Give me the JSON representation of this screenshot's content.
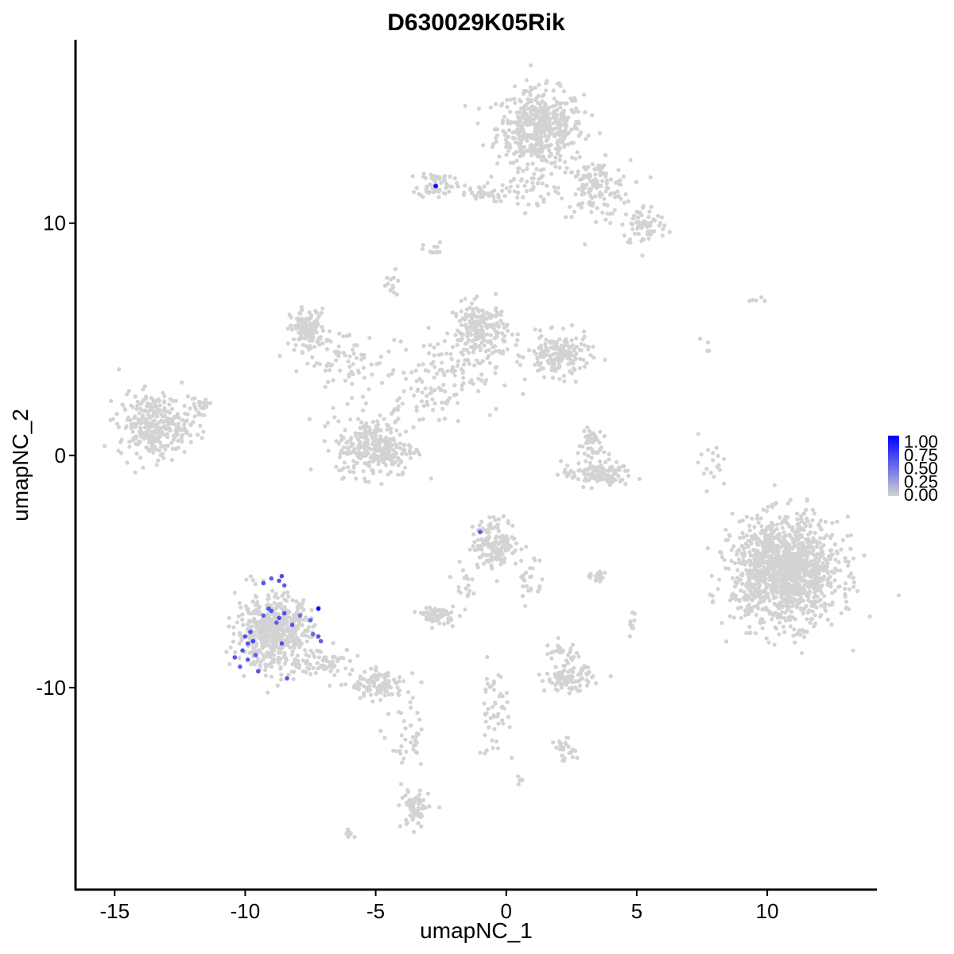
{
  "chart_data": {
    "type": "scatter",
    "title": "D630029K05Rik",
    "xlabel": "umapNC_1",
    "ylabel": "umapNC_2",
    "xlim": [
      -16.5,
      14.2
    ],
    "ylim": [
      -18.7,
      17.9
    ],
    "x_ticks": [
      -15,
      -10,
      -5,
      0,
      5,
      10
    ],
    "x_tick_labels": [
      "-15",
      "-10",
      "-5",
      "0",
      "5",
      "10"
    ],
    "y_ticks": [
      -10,
      0,
      10
    ],
    "y_tick_labels": [
      "-10",
      "0",
      "10"
    ],
    "grid": false,
    "legend": {
      "position": "right",
      "type": "colorbar",
      "labels": [
        "1.00",
        "0.75",
        "0.50",
        "0.25",
        "0.00"
      ],
      "low_color": "#d3d3d3",
      "high_color": "#0000ff",
      "range": [
        0,
        1
      ]
    },
    "background_color": "#d3d3d3",
    "clusters": [
      {
        "cx": 1.3,
        "cy": 14.1,
        "sx": 1.1,
        "sy": 1.1,
        "n": 480
      },
      {
        "cx": 3.4,
        "cy": 11.5,
        "sx": 0.9,
        "sy": 0.8,
        "n": 140
      },
      {
        "cx": 5.3,
        "cy": 9.9,
        "sx": 0.6,
        "sy": 0.6,
        "n": 70
      },
      {
        "cx": -2.7,
        "cy": 11.7,
        "sx": 0.45,
        "sy": 0.4,
        "n": 60
      },
      {
        "cx": -1.1,
        "cy": 11.3,
        "sx": 0.8,
        "sy": 0.25,
        "n": 40
      },
      {
        "cx": 0.9,
        "cy": 11.6,
        "sx": 0.5,
        "sy": 0.7,
        "n": 40
      },
      {
        "cx": -2.8,
        "cy": 8.8,
        "sx": 0.25,
        "sy": 0.25,
        "n": 12
      },
      {
        "cx": -4.4,
        "cy": 7.3,
        "sx": 0.25,
        "sy": 0.45,
        "n": 15
      },
      {
        "cx": -7.6,
        "cy": 5.4,
        "sx": 0.45,
        "sy": 0.6,
        "n": 120
      },
      {
        "cx": -6.2,
        "cy": 4.0,
        "sx": 1.1,
        "sy": 1.0,
        "n": 70
      },
      {
        "cx": -1.0,
        "cy": 5.4,
        "sx": 0.7,
        "sy": 0.8,
        "n": 200
      },
      {
        "cx": 2.0,
        "cy": 4.3,
        "sx": 0.8,
        "sy": 0.6,
        "n": 170
      },
      {
        "cx": -2.5,
        "cy": 3.5,
        "sx": 1.5,
        "sy": 1.1,
        "n": 120
      },
      {
        "cx": -4.0,
        "cy": 1.7,
        "sx": 1.1,
        "sy": 0.7,
        "n": 35
      },
      {
        "cx": -5.0,
        "cy": 0.3,
        "sx": 1.0,
        "sy": 0.8,
        "n": 280
      },
      {
        "cx": -13.5,
        "cy": 1.3,
        "sx": 0.9,
        "sy": 0.9,
        "n": 300
      },
      {
        "cx": -11.8,
        "cy": 2.1,
        "sx": 0.35,
        "sy": 0.45,
        "n": 25
      },
      {
        "cx": 3.2,
        "cy": 0.5,
        "sx": 0.3,
        "sy": 0.6,
        "n": 45
      },
      {
        "cx": 3.5,
        "cy": -0.8,
        "sx": 0.9,
        "sy": 0.35,
        "n": 120
      },
      {
        "cx": 7.8,
        "cy": -0.2,
        "sx": 0.3,
        "sy": 0.8,
        "n": 18
      },
      {
        "cx": -0.4,
        "cy": -3.8,
        "sx": 0.6,
        "sy": 0.7,
        "n": 160
      },
      {
        "cx": 0.9,
        "cy": -5.3,
        "sx": 0.3,
        "sy": 0.8,
        "n": 25
      },
      {
        "cx": -1.7,
        "cy": -5.5,
        "sx": 0.25,
        "sy": 0.5,
        "n": 18
      },
      {
        "cx": 10.7,
        "cy": -5.0,
        "sx": 1.35,
        "sy": 1.5,
        "n": 1300
      },
      {
        "cx": -8.9,
        "cy": -7.6,
        "sx": 0.95,
        "sy": 1.05,
        "n": 550
      },
      {
        "cx": -6.8,
        "cy": -8.9,
        "sx": 0.7,
        "sy": 0.4,
        "n": 60
      },
      {
        "cx": -4.9,
        "cy": -9.9,
        "sx": 0.7,
        "sy": 0.4,
        "n": 110
      },
      {
        "cx": -2.6,
        "cy": -6.9,
        "sx": 0.4,
        "sy": 0.25,
        "n": 70
      },
      {
        "cx": 2.4,
        "cy": -9.6,
        "sx": 0.6,
        "sy": 0.35,
        "n": 100
      },
      {
        "cx": 2.1,
        "cy": -8.5,
        "sx": 0.5,
        "sy": 0.3,
        "n": 25
      },
      {
        "cx": 3.5,
        "cy": -5.2,
        "sx": 0.35,
        "sy": 0.15,
        "n": 20
      },
      {
        "cx": -3.7,
        "cy": -12.5,
        "sx": 0.5,
        "sy": 1.1,
        "n": 40
      },
      {
        "cx": -3.5,
        "cy": -15.2,
        "sx": 0.35,
        "sy": 0.6,
        "n": 70
      },
      {
        "cx": -0.5,
        "cy": -11.0,
        "sx": 0.4,
        "sy": 1.3,
        "n": 50
      },
      {
        "cx": 2.3,
        "cy": -12.7,
        "sx": 0.3,
        "sy": 0.3,
        "n": 25
      },
      {
        "cx": -6.0,
        "cy": -16.3,
        "sx": 0.2,
        "sy": 0.12,
        "n": 10
      },
      {
        "cx": 0.6,
        "cy": -14.0,
        "sx": 0.15,
        "sy": 0.15,
        "n": 5
      },
      {
        "cx": 4.9,
        "cy": -7.3,
        "sx": 0.25,
        "sy": 0.5,
        "n": 10
      },
      {
        "cx": 9.5,
        "cy": 6.7,
        "sx": 0.25,
        "sy": 0.1,
        "n": 5
      },
      {
        "cx": 7.6,
        "cy": 4.7,
        "sx": 0.15,
        "sy": 0.3,
        "n": 4
      }
    ],
    "expressing_points": [
      {
        "x": -2.7,
        "y": 11.6,
        "value": 1.0
      },
      {
        "x": -7.2,
        "y": -6.6,
        "value": 0.95
      },
      {
        "x": -1.0,
        "y": -3.3,
        "value": 0.6
      },
      {
        "x": -9.3,
        "y": -5.5,
        "value": 0.6
      },
      {
        "x": -9.0,
        "y": -5.3,
        "value": 0.55
      },
      {
        "x": -8.7,
        "y": -5.4,
        "value": 0.6
      },
      {
        "x": -8.6,
        "y": -5.2,
        "value": 0.65
      },
      {
        "x": -8.5,
        "y": -5.6,
        "value": 0.55
      },
      {
        "x": -9.1,
        "y": -6.6,
        "value": 0.6
      },
      {
        "x": -9.0,
        "y": -6.7,
        "value": 0.6
      },
      {
        "x": -8.7,
        "y": -7.0,
        "value": 0.65
      },
      {
        "x": -8.5,
        "y": -6.8,
        "value": 0.6
      },
      {
        "x": -8.8,
        "y": -7.2,
        "value": 0.55
      },
      {
        "x": -9.3,
        "y": -6.9,
        "value": 0.55
      },
      {
        "x": -8.2,
        "y": -7.3,
        "value": 0.6
      },
      {
        "x": -7.5,
        "y": -7.1,
        "value": 0.55
      },
      {
        "x": -7.9,
        "y": -6.9,
        "value": 0.5
      },
      {
        "x": -9.8,
        "y": -7.6,
        "value": 0.6
      },
      {
        "x": -10.0,
        "y": -7.8,
        "value": 0.6
      },
      {
        "x": -9.7,
        "y": -8.0,
        "value": 0.65
      },
      {
        "x": -9.9,
        "y": -8.1,
        "value": 0.6
      },
      {
        "x": -10.1,
        "y": -8.4,
        "value": 0.6
      },
      {
        "x": -9.6,
        "y": -8.6,
        "value": 0.55
      },
      {
        "x": -9.9,
        "y": -8.8,
        "value": 0.6
      },
      {
        "x": -10.4,
        "y": -8.7,
        "value": 0.6
      },
      {
        "x": -10.2,
        "y": -9.1,
        "value": 0.55
      },
      {
        "x": -9.5,
        "y": -9.3,
        "value": 0.6
      },
      {
        "x": -8.6,
        "y": -8.1,
        "value": 0.6
      },
      {
        "x": -7.2,
        "y": -7.8,
        "value": 0.6
      },
      {
        "x": -7.1,
        "y": -8.0,
        "value": 0.55
      },
      {
        "x": -7.4,
        "y": -7.7,
        "value": 0.5
      },
      {
        "x": -8.4,
        "y": -9.6,
        "value": 0.6
      }
    ]
  }
}
